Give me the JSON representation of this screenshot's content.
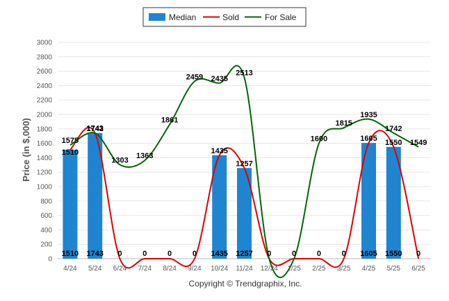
{
  "chart_data": {
    "type": "bar",
    "categories": [
      "4/24",
      "5/24",
      "6/24",
      "7/24",
      "8/24",
      "9/24",
      "10/24",
      "11/24",
      "12/24",
      "1/25",
      "2/25",
      "3/25",
      "4/25",
      "5/25",
      "6/25"
    ],
    "series": [
      {
        "name": "Median",
        "type": "bar",
        "color": "#1f85d0",
        "values": [
          1510,
          1743,
          0,
          0,
          0,
          0,
          1435,
          1257,
          0,
          0,
          0,
          0,
          1605,
          1550,
          0
        ]
      },
      {
        "name": "Sold",
        "type": "line",
        "color": "#dd0000",
        "values": [
          1510,
          1743,
          0,
          0,
          0,
          0,
          1435,
          1257,
          0,
          0,
          0,
          0,
          1605,
          1550,
          0
        ]
      },
      {
        "name": "For Sale",
        "type": "line",
        "color": "#006600",
        "values": [
          1575,
          1742,
          1303,
          1363,
          1861,
          2459,
          2435,
          2513,
          0,
          0,
          1600,
          1815,
          1935,
          1742,
          1549
        ]
      }
    ],
    "xlabel": "",
    "ylabel": "Price (in $,000)",
    "ylim": [
      0,
      3000
    ],
    "yticks": [
      0,
      200,
      400,
      600,
      800,
      1000,
      1200,
      1400,
      1600,
      1800,
      2000,
      2200,
      2400,
      2600,
      2800,
      3000
    ],
    "grid": true,
    "legend": "top-center"
  },
  "credit": "Copyright © Trendgraphix, Inc."
}
